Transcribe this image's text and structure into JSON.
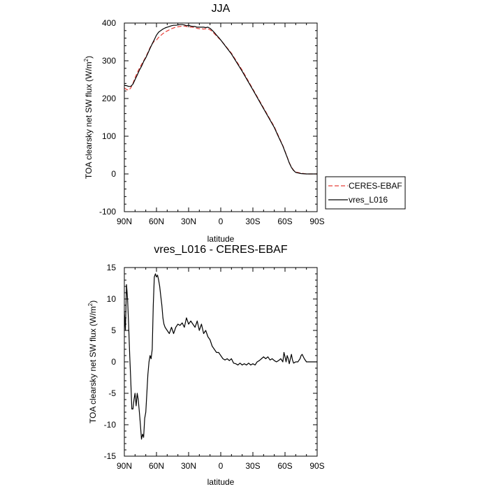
{
  "chart_data": [
    {
      "type": "line",
      "title": "JJA",
      "xlabel": "latitude",
      "ylabel": "TOA clearsky net SW flux (W/m",
      "ylabel_sup": "2",
      "ylabel_end": ")",
      "xlim": [
        90,
        -90
      ],
      "ylim": [
        -100,
        400
      ],
      "xticks": [
        90,
        60,
        30,
        0,
        -30,
        -60,
        -90
      ],
      "xtick_labels": [
        "90N",
        "60N",
        "30N",
        "0",
        "30S",
        "60S",
        "90S"
      ],
      "yticks": [
        -100,
        0,
        100,
        200,
        300,
        400
      ],
      "ytick_labels": [
        "-100",
        "0",
        "100",
        "200",
        "300",
        "400"
      ],
      "legend_position": "right",
      "series": [
        {
          "name": "CERES-EBAF",
          "color": "#e8403a",
          "dash": true,
          "x": [
            90,
            88,
            86,
            84,
            82,
            80,
            78,
            76,
            74,
            72,
            70,
            68,
            66,
            64,
            62,
            60,
            58,
            56,
            54,
            52,
            50,
            48,
            46,
            44,
            42,
            40,
            38,
            36,
            34,
            32,
            30,
            28,
            26,
            24,
            22,
            20,
            18,
            16,
            14,
            12,
            10,
            8,
            6,
            4,
            2,
            0,
            -10,
            -20,
            -30,
            -40,
            -50,
            -54,
            -58,
            -60,
            -62,
            -64,
            -66,
            -68,
            -70,
            -75,
            -80,
            -85,
            -90
          ],
          "values": [
            228,
            224,
            222,
            228,
            240,
            255,
            268,
            280,
            290,
            300,
            310,
            322,
            335,
            345,
            352,
            355,
            362,
            367,
            372,
            376,
            379,
            382,
            385,
            387,
            389,
            390,
            391,
            392,
            392,
            391,
            390,
            389,
            389,
            388,
            386,
            385,
            385,
            384,
            385,
            385,
            382,
            378,
            372,
            366,
            360,
            355,
            320,
            275,
            225,
            175,
            125,
            100,
            75,
            60,
            45,
            30,
            18,
            10,
            5,
            2,
            0,
            0,
            0
          ]
        },
        {
          "name": "vres_L016",
          "color": "#000000",
          "dash": false,
          "x": [
            90,
            88,
            86,
            84,
            82,
            80,
            78,
            76,
            74,
            72,
            70,
            68,
            66,
            64,
            62,
            60,
            58,
            56,
            54,
            52,
            50,
            48,
            46,
            44,
            42,
            40,
            38,
            36,
            34,
            32,
            30,
            28,
            26,
            24,
            22,
            20,
            18,
            16,
            14,
            12,
            10,
            8,
            6,
            4,
            2,
            0,
            -10,
            -20,
            -30,
            -40,
            -50,
            -54,
            -58,
            -60,
            -62,
            -64,
            -66,
            -68,
            -70,
            -75,
            -80,
            -85,
            -90
          ],
          "values": [
            235,
            234,
            232,
            232,
            238,
            250,
            262,
            275,
            285,
            298,
            308,
            320,
            333,
            345,
            356,
            368,
            376,
            380,
            384,
            387,
            389,
            391,
            393,
            394,
            394,
            395,
            396,
            396,
            395,
            393,
            394,
            392,
            391,
            391,
            389,
            389,
            389,
            389,
            388,
            389,
            386,
            381,
            375,
            368,
            362,
            355,
            318,
            272,
            223,
            173,
            123,
            98,
            74,
            59,
            44,
            29,
            17,
            9,
            4,
            1,
            0,
            0,
            0
          ]
        }
      ]
    },
    {
      "type": "line",
      "title": "vres_L016 - CERES-EBAF",
      "xlabel": "latitude",
      "ylabel": "TOA clearsky net SW flux (W/m",
      "ylabel_sup": "2",
      "ylabel_end": ")",
      "xlim": [
        90,
        -90
      ],
      "ylim": [
        -15,
        15
      ],
      "xticks": [
        90,
        60,
        30,
        0,
        -30,
        -60,
        -90
      ],
      "xtick_labels": [
        "90N",
        "60N",
        "30N",
        "0",
        "30S",
        "60S",
        "90S"
      ],
      "yticks": [
        -15,
        -10,
        -5,
        0,
        5,
        10,
        15
      ],
      "ytick_labels": [
        "-15",
        "-10",
        "-5",
        "0",
        "5",
        "10",
        "15"
      ],
      "series": [
        {
          "name": "vres_L016 - CERES-EBAF",
          "color": "#000000",
          "dash": false,
          "x": [
            90,
            89,
            88,
            87,
            86,
            85,
            84,
            83,
            82,
            81,
            80,
            79,
            78,
            77,
            76,
            75,
            74,
            73,
            72,
            71,
            70,
            69,
            68,
            67,
            66,
            65,
            64,
            63,
            62,
            61,
            60,
            59,
            58,
            57,
            56,
            55,
            54,
            53,
            52,
            50,
            48,
            46,
            44,
            42,
            40,
            38,
            36,
            34,
            32,
            30,
            28,
            26,
            24,
            22,
            20,
            18,
            16,
            14,
            12,
            10,
            8,
            6,
            4,
            2,
            0,
            -2,
            -4,
            -6,
            -8,
            -10,
            -12,
            -14,
            -16,
            -18,
            -20,
            -22,
            -24,
            -26,
            -28,
            -30,
            -32,
            -34,
            -36,
            -38,
            -40,
            -42,
            -44,
            -46,
            -48,
            -50,
            -52,
            -54,
            -56,
            -58,
            -59,
            -60,
            -61,
            -62,
            -63,
            -64,
            -65,
            -66,
            -67,
            -68,
            -70,
            -72,
            -74,
            -75,
            -76,
            -78,
            -80,
            -85,
            -90
          ],
          "values": [
            8,
            5,
            12.3,
            10,
            6,
            1,
            -3,
            -7.5,
            -7.5,
            -6,
            -5,
            -7,
            -5,
            -6,
            -8,
            -10,
            -12.3,
            -11.5,
            -12,
            -9,
            -8,
            -5,
            -2,
            0,
            1,
            0.5,
            2,
            9,
            13.5,
            14,
            13.5,
            13.8,
            13,
            12,
            10.5,
            9,
            7,
            6,
            5.5,
            5,
            4.5,
            5.5,
            4.5,
            5.5,
            6,
            5.8,
            6.2,
            5.5,
            7,
            6,
            6.5,
            6,
            5.5,
            6.5,
            5,
            6,
            4.5,
            5,
            4,
            3.5,
            2.5,
            2,
            1.5,
            1.5,
            1,
            0.5,
            0.3,
            0.5,
            0.2,
            0.5,
            -0.2,
            -0.3,
            -0.5,
            -0.2,
            -0.5,
            -0.3,
            -0.5,
            -0.2,
            -0.5,
            -0.3,
            -0.5,
            0,
            0.2,
            0.5,
            0.8,
            0.5,
            0.8,
            0.3,
            0.5,
            0.2,
            0,
            0.2,
            0.5,
            0,
            1.5,
            0.8,
            0,
            1,
            0.5,
            -0.3,
            0.5,
            1.2,
            0.3,
            -0.2,
            0,
            0,
            0.5,
            1,
            1.2,
            0.5,
            0,
            0,
            0
          ]
        }
      ]
    }
  ]
}
